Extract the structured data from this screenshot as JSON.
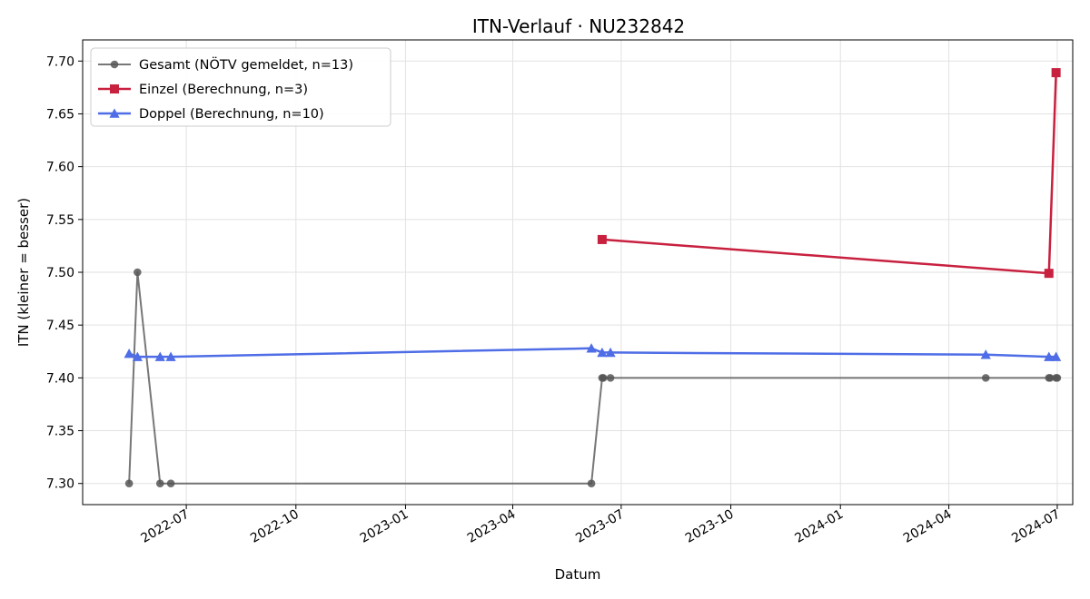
{
  "chart_data": {
    "type": "line",
    "title": "ITN-Verlauf · NU232842",
    "xlabel": "Datum",
    "ylabel": "ITN  (kleiner = besser)",
    "xlim": [
      "2022-04-05",
      "2024-07-14"
    ],
    "ylim": [
      7.28,
      7.72
    ],
    "yticks": [
      "7.30",
      "7.35",
      "7.40",
      "7.45",
      "7.50",
      "7.55",
      "7.60",
      "7.65",
      "7.70"
    ],
    "xticks": [
      "2022-07",
      "2022-10",
      "2023-01",
      "2023-04",
      "2023-07",
      "2023-10",
      "2024-01",
      "2024-04",
      "2024-07"
    ],
    "grid": true,
    "legend_position": "top-left",
    "series": [
      {
        "name": "Gesamt (NÖTV gemeldet, n=13)",
        "color": "#555555",
        "marker": "circle",
        "points": [
          {
            "x": "2022-05-14",
            "y": 7.3
          },
          {
            "x": "2022-05-21",
            "y": 7.5
          },
          {
            "x": "2022-06-09",
            "y": 7.3
          },
          {
            "x": "2022-06-18",
            "y": 7.3
          },
          {
            "x": "2023-06-06",
            "y": 7.3
          },
          {
            "x": "2023-06-15",
            "y": 7.4
          },
          {
            "x": "2023-06-16",
            "y": 7.4
          },
          {
            "x": "2023-06-22",
            "y": 7.4
          },
          {
            "x": "2024-05-02",
            "y": 7.4
          },
          {
            "x": "2024-06-24",
            "y": 7.4
          },
          {
            "x": "2024-06-25",
            "y": 7.4
          },
          {
            "x": "2024-06-30",
            "y": 7.4
          },
          {
            "x": "2024-07-01",
            "y": 7.4
          }
        ]
      },
      {
        "name": "Einzel (Berechnung, n=3)",
        "color": "#c8203f",
        "marker": "square",
        "points": [
          {
            "x": "2023-06-15",
            "y": 7.531
          },
          {
            "x": "2024-06-24",
            "y": 7.499
          },
          {
            "x": "2024-06-30",
            "y": 7.689
          }
        ]
      },
      {
        "name": "Doppel (Berechnung, n=10)",
        "color": "#4f6de6",
        "marker": "triangle",
        "points": [
          {
            "x": "2022-05-14",
            "y": 7.423
          },
          {
            "x": "2022-05-21",
            "y": 7.42
          },
          {
            "x": "2022-06-09",
            "y": 7.42
          },
          {
            "x": "2022-06-18",
            "y": 7.42
          },
          {
            "x": "2023-06-06",
            "y": 7.428
          },
          {
            "x": "2023-06-15",
            "y": 7.424
          },
          {
            "x": "2023-06-22",
            "y": 7.424
          },
          {
            "x": "2024-05-02",
            "y": 7.422
          },
          {
            "x": "2024-06-24",
            "y": 7.42
          },
          {
            "x": "2024-06-30",
            "y": 7.42
          }
        ]
      }
    ]
  }
}
